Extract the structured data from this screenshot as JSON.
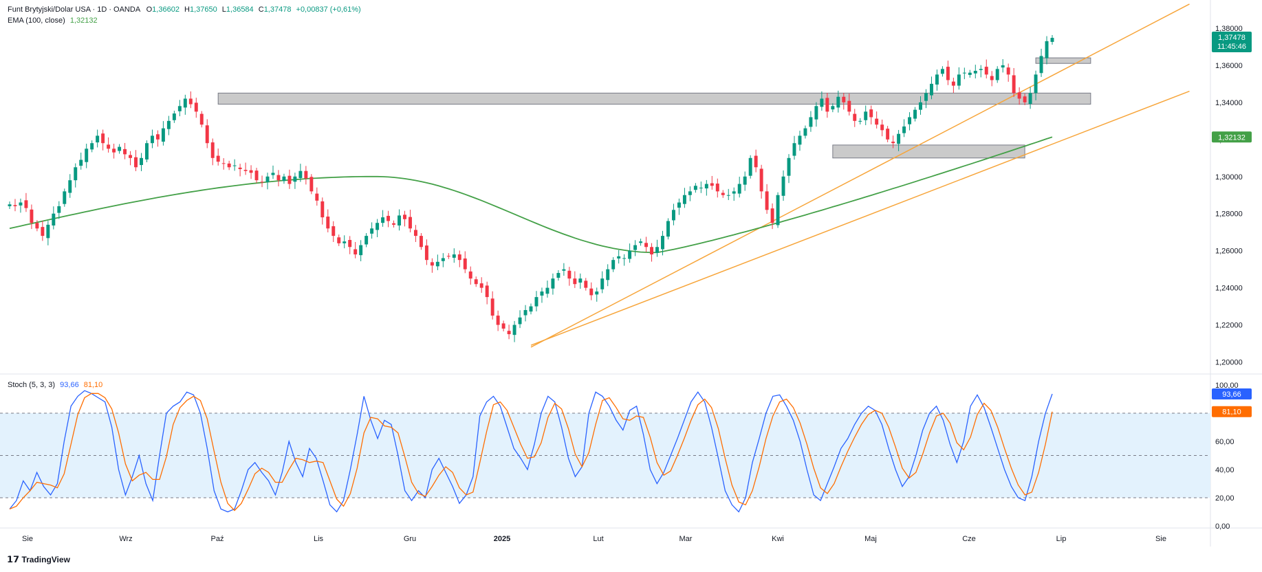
{
  "header": {
    "symbol": "Funt Brytyjski/Dolar USA · 1D · OANDA",
    "o_label": "O",
    "o_value": "1,36602",
    "h_label": "H",
    "h_value": "1,37650",
    "l_label": "L",
    "l_value": "1,36584",
    "c_label": "C",
    "c_value": "1,37478",
    "change": "+0,00837 (+0,61%)",
    "ema_label": "EMA (100, close)",
    "ema_value": "1,32132",
    "stoch_label": "Stoch (5, 3, 3)",
    "stoch_k": "93,66",
    "stoch_d": "81,10"
  },
  "price_tag": {
    "value": "1,37478",
    "countdown": "11:45:46"
  },
  "ema_tag": "1,32132",
  "brand": "TradingView",
  "colors": {
    "up": "#089981",
    "down": "#f23645",
    "ema": "#43a047",
    "channel": "#f7a53a",
    "zone": "#9e9e9e",
    "stoch_k": "#2962ff",
    "stoch_d": "#ff6d00",
    "stoch_band": "#e3f2fd"
  },
  "chart_data": [
    {
      "type": "candlestick",
      "title": "Funt Brytyjski/Dolar USA",
      "y_ticks": [
        "1,38000",
        "1,36000",
        "1,34000",
        "1,32000",
        "1,30000",
        "1,28000",
        "1,26000",
        "1,24000",
        "1,22000",
        "1,20000"
      ],
      "ylim": [
        1.195,
        1.39
      ],
      "x_ticks": [
        "Sie",
        "Wrz",
        "Paź",
        "Lis",
        "Gru",
        "2025",
        "Lut",
        "Mar",
        "Kwi",
        "Maj",
        "Cze",
        "Lip",
        "Sie"
      ],
      "close_path": [
        1.285,
        1.284,
        1.286,
        1.283,
        1.275,
        1.272,
        1.268,
        1.274,
        1.28,
        1.284,
        1.292,
        1.298,
        1.305,
        1.309,
        1.315,
        1.318,
        1.322,
        1.318,
        1.315,
        1.313,
        1.316,
        1.312,
        1.31,
        1.305,
        1.31,
        1.318,
        1.322,
        1.32,
        1.326,
        1.33,
        1.334,
        1.338,
        1.342,
        1.339,
        1.335,
        1.328,
        1.318,
        1.31,
        1.308,
        1.307,
        1.305,
        1.306,
        1.304,
        1.303,
        1.302,
        1.298,
        1.297,
        1.3,
        1.302,
        1.298,
        1.3,
        1.296,
        1.3,
        1.303,
        1.299,
        1.292,
        1.287,
        1.278,
        1.272,
        1.268,
        1.264,
        1.265,
        1.262,
        1.258,
        1.263,
        1.268,
        1.272,
        1.275,
        1.278,
        1.276,
        1.274,
        1.279,
        1.277,
        1.272,
        1.268,
        1.262,
        1.255,
        1.252,
        1.254,
        1.256,
        1.257,
        1.258,
        1.255,
        1.25,
        1.245,
        1.242,
        1.24,
        1.235,
        1.225,
        1.22,
        1.218,
        1.215,
        1.22,
        1.224,
        1.228,
        1.23,
        1.235,
        1.238,
        1.24,
        1.245,
        1.248,
        1.25,
        1.245,
        1.242,
        1.245,
        1.24,
        1.236,
        1.238,
        1.245,
        1.25,
        1.255,
        1.257,
        1.256,
        1.26,
        1.263,
        1.265,
        1.262,
        1.258,
        1.262,
        1.268,
        1.276,
        1.282,
        1.286,
        1.29,
        1.292,
        1.295,
        1.294,
        1.296,
        1.295,
        1.292,
        1.29,
        1.29,
        1.292,
        1.296,
        1.3,
        1.31,
        1.305,
        1.292,
        1.282,
        1.275,
        1.29,
        1.3,
        1.31,
        1.318,
        1.322,
        1.326,
        1.332,
        1.338,
        1.342,
        1.335,
        1.338,
        1.343,
        1.34,
        1.335,
        1.33,
        1.33,
        1.335,
        1.332,
        1.328,
        1.325,
        1.32,
        1.318,
        1.323,
        1.327,
        1.332,
        1.336,
        1.34,
        1.345,
        1.35,
        1.355,
        1.358,
        1.352,
        1.349,
        1.355,
        1.356,
        1.356,
        1.357,
        1.358,
        1.355,
        1.352,
        1.358,
        1.36,
        1.355,
        1.345,
        1.342,
        1.34,
        1.345,
        1.355,
        1.365,
        1.373,
        1.37478
      ],
      "ema_100": {
        "start": 1.272,
        "min": 1.259,
        "end": 1.32132
      },
      "channel_upper": {
        "from": {
          "i": 95,
          "y": 1.208
        },
        "to": {
          "i": 215,
          "y": 1.393
        }
      },
      "channel_lower": {
        "from": {
          "i": 95,
          "y": 1.209
        },
        "to": {
          "i": 215,
          "y": 1.346
        }
      },
      "zones": [
        {
          "from_i": 38,
          "to_i": 197,
          "y1": 1.339,
          "y2": 1.345
        },
        {
          "from_i": 150,
          "to_i": 185,
          "y1": 1.31,
          "y2": 1.317
        },
        {
          "from_i": 187,
          "to_i": 197,
          "y1": 1.361,
          "y2": 1.364
        }
      ]
    },
    {
      "type": "line",
      "title": "Stoch (5, 3, 3)",
      "y_ticks": [
        "100,00",
        "80,00",
        "60,00",
        "40,00",
        "20,00",
        "0,00"
      ],
      "ylim": [
        0,
        100
      ],
      "levels": [
        80,
        50,
        20
      ],
      "series": [
        {
          "name": "%K",
          "values": [
            12,
            18,
            32,
            25,
            38,
            28,
            22,
            30,
            60,
            85,
            92,
            96,
            94,
            91,
            88,
            70,
            40,
            22,
            35,
            50,
            30,
            18,
            50,
            80,
            85,
            88,
            95,
            93,
            80,
            55,
            25,
            12,
            10,
            12,
            25,
            40,
            45,
            38,
            32,
            22,
            38,
            60,
            45,
            35,
            55,
            48,
            32,
            15,
            10,
            18,
            40,
            65,
            92,
            75,
            62,
            75,
            72,
            50,
            25,
            18,
            25,
            20,
            40,
            48,
            38,
            28,
            16,
            22,
            35,
            78,
            88,
            92,
            85,
            70,
            55,
            48,
            40,
            58,
            80,
            92,
            88,
            70,
            48,
            35,
            42,
            80,
            95,
            92,
            85,
            75,
            68,
            82,
            85,
            65,
            40,
            30,
            38,
            50,
            62,
            75,
            88,
            95,
            88,
            70,
            48,
            25,
            15,
            10,
            20,
            45,
            62,
            80,
            92,
            93,
            85,
            75,
            60,
            40,
            22,
            18,
            30,
            42,
            55,
            62,
            72,
            80,
            85,
            82,
            72,
            55,
            40,
            28,
            35,
            50,
            68,
            80,
            85,
            75,
            58,
            45,
            60,
            85,
            93,
            84,
            70,
            55,
            40,
            28,
            20,
            18,
            35,
            60,
            80,
            93.66
          ]
        },
        {
          "name": "%D",
          "values": [
            12,
            14,
            20,
            25,
            31,
            30,
            29,
            27,
            37,
            58,
            79,
            91,
            94,
            94,
            91,
            83,
            66,
            44,
            32,
            36,
            38,
            33,
            33,
            49,
            72,
            84,
            89,
            92,
            89,
            76,
            53,
            31,
            16,
            11,
            16,
            26,
            37,
            41,
            38,
            31,
            31,
            40,
            48,
            47,
            45,
            46,
            45,
            32,
            19,
            14,
            23,
            41,
            66,
            77,
            76,
            71,
            70,
            66,
            49,
            31,
            23,
            21,
            28,
            36,
            42,
            38,
            27,
            22,
            24,
            45,
            67,
            86,
            88,
            82,
            70,
            58,
            48,
            49,
            59,
            77,
            87,
            83,
            69,
            51,
            42,
            52,
            72,
            89,
            91,
            84,
            76,
            75,
            78,
            77,
            63,
            45,
            36,
            39,
            50,
            62,
            75,
            86,
            90,
            84,
            69,
            48,
            29,
            17,
            15,
            25,
            42,
            62,
            78,
            88,
            90,
            84,
            73,
            58,
            41,
            27,
            23,
            30,
            42,
            53,
            63,
            72,
            79,
            82,
            80,
            70,
            56,
            41,
            34,
            38,
            51,
            66,
            78,
            80,
            73,
            59,
            54,
            63,
            79,
            87,
            82,
            70,
            55,
            41,
            29,
            22,
            24,
            38,
            58,
            81.1
          ]
        }
      ]
    }
  ]
}
